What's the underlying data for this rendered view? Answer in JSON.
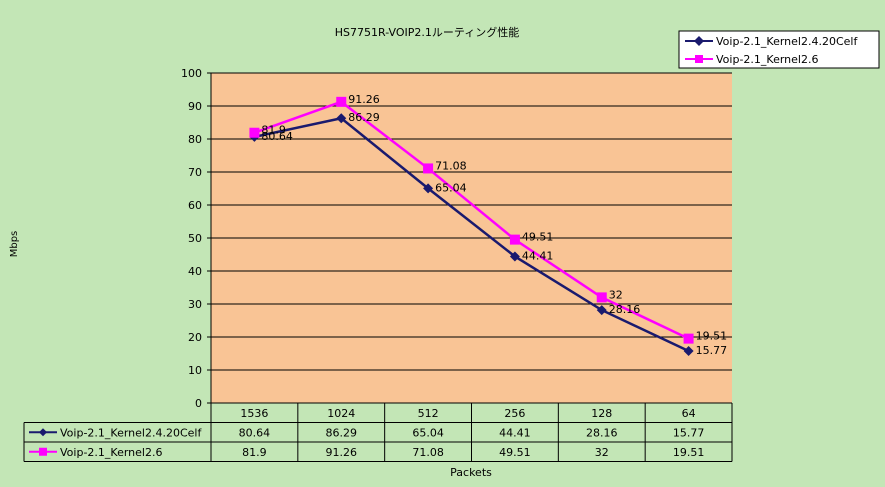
{
  "chart_data": {
    "type": "line",
    "title": "HS7751R-VOIP2.1ルーティング性能",
    "xlabel": "Packets",
    "ylabel": "Mbps",
    "ylim": [
      0,
      100
    ],
    "yticks": [
      "0",
      "10",
      "20",
      "30",
      "40",
      "50",
      "60",
      "70",
      "80",
      "90",
      "100"
    ],
    "categories": [
      "1536",
      "1024",
      "512",
      "256",
      "128",
      "64"
    ],
    "grid": "horizontal",
    "legend_position": "top-right",
    "series": [
      {
        "name": "Voip-2.1_Kernel2.4.20Celf",
        "marker": "diamond",
        "color": "#1a1a6e",
        "values": [
          80.64,
          86.29,
          65.04,
          44.41,
          28.16,
          15.77
        ],
        "labels": [
          "80.64",
          "86.29",
          "65.04",
          "44.41",
          "28.16",
          "15.77"
        ]
      },
      {
        "name": "Voip-2.1_Kernel2.6",
        "marker": "square",
        "color": "#ff00ff",
        "values": [
          81.9,
          91.26,
          71.08,
          49.51,
          32,
          19.51
        ],
        "labels": [
          "81.9",
          "91.26",
          "71.08",
          "49.51",
          "32",
          "19.51"
        ]
      }
    ]
  },
  "colors": {
    "background": "#c3e6b6",
    "plot_area": "#f9c495"
  }
}
